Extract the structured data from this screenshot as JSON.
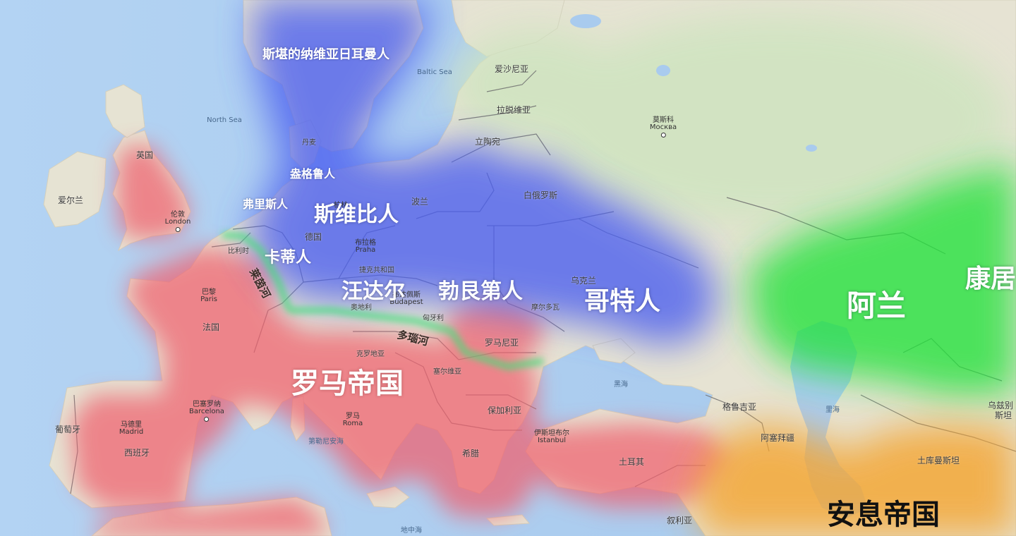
{
  "map": {
    "colors": {
      "water": "#a9cbee",
      "land": "#e6e3d3",
      "forest": "#cfe4c0",
      "roman_red": "#f0606e",
      "barbarian_blue": "#4a5df0",
      "steppe_green": "#22e23a",
      "parthian_orange": "#f4a531",
      "border": "#6f6f6f"
    },
    "seas": {
      "north_sea": "North Sea",
      "baltic_sea": "Baltic Sea",
      "black_sea": "黑海",
      "caspian_sea": "里海",
      "tyrrhenian_sea": "第勒尼安海",
      "mediterranean": "地中海"
    },
    "countries": {
      "uk": "英国",
      "ireland": "爱尔兰",
      "belgium": "比利时",
      "france": "法国",
      "portugal": "葡萄牙",
      "spain": "西班牙",
      "germany": "德国",
      "denmark": "丹麦",
      "poland": "波兰",
      "czech": "捷克共和国",
      "austria": "奥地利",
      "hungary": "匈牙利",
      "croatia": "克罗地亚",
      "serbia": "塞尔维亚",
      "romania": "罗马尼亚",
      "moldova": "摩尔多瓦",
      "bulgaria": "保加利亚",
      "greece": "希腊",
      "turkey": "土耳其",
      "syria": "叙利亚",
      "ukraine": "乌克兰",
      "belarus": "白俄罗斯",
      "lithuania": "立陶宛",
      "latvia": "拉脱维亚",
      "estonia": "爱沙尼亚",
      "georgia": "格鲁吉亚",
      "azerbaijan": "阿塞拜疆",
      "turkmenistan": "土库曼斯坦",
      "uzbek_1": "乌兹别",
      "uzbek_2": "斯坦"
    },
    "cities": {
      "london_cn": "伦敦",
      "london_en": "London",
      "paris_cn": "巴黎",
      "paris_en": "Paris",
      "madrid_cn": "马德里",
      "madrid_en": "Madrid",
      "barcelona_cn": "巴塞罗纳",
      "barcelona_en": "Barcelona",
      "rome_cn": "罗马",
      "rome_en": "Roma",
      "prague_cn": "布拉格",
      "prague_en": "Praha",
      "budapest_cn": "布达佩斯",
      "budapest_en": "Budapest",
      "istanbul_cn": "伊斯坦布尔",
      "istanbul_en": "Istanbul",
      "moscow_cn": "莫斯科",
      "moscow_en": "Москва",
      "berlin_cn": "柏林"
    },
    "tribes": {
      "scandinavian_germans": "斯堪的纳维亚日耳曼人",
      "burgundians": "盎格鲁人",
      "frisians": "弗里斯人",
      "suebi": "斯维比人",
      "chatti": "卡蒂人",
      "vandals": "汪达尔",
      "burgundi": "勃艮第人",
      "goths": "哥特人",
      "alans": "阿兰",
      "kangju": "康居",
      "roman_empire": "罗马帝国",
      "parthian_empire": "安息帝国"
    },
    "rivers": {
      "rhine": "莱茵河",
      "danube": "多瑙河"
    }
  }
}
